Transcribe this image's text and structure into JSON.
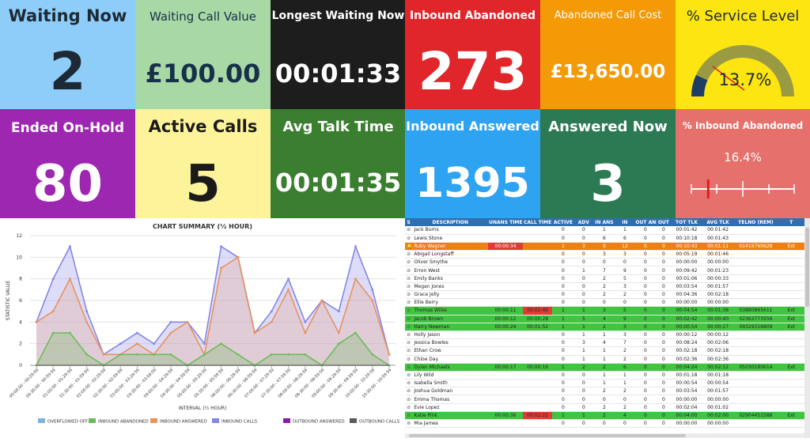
{
  "tiles": [
    {
      "title": "Waiting Now",
      "value": "2"
    },
    {
      "title": "Waiting Call Value",
      "value": "£100.00"
    },
    {
      "title": "Longest Waiting Now",
      "value": "00:01:33"
    },
    {
      "title": "Inbound Abandoned",
      "value": "273"
    },
    {
      "title": "Abandoned Call Cost",
      "value": "£13,650.00"
    },
    {
      "title": "% Service Level",
      "value": "13.7%"
    },
    {
      "title": "Ended On-Hold",
      "value": "80"
    },
    {
      "title": "Active Calls",
      "value": "5"
    },
    {
      "title": "Avg Talk Time",
      "value": "00:01:35"
    },
    {
      "title": "Inbound Answered",
      "value": "1395"
    },
    {
      "title": "Answered Now",
      "value": "3"
    },
    {
      "title": "% Inbound Abandoned",
      "value": "16.4%"
    }
  ],
  "colors": {
    "waiting_now": "#8ecdf7",
    "waiting_value": "#a8d8a4",
    "longest": "#1d1d1d",
    "abandoned": "#e1262b",
    "abandon_cost": "#f59a07",
    "service": "#fce511",
    "on_hold": "#9d27b0",
    "active": "#fdf39a",
    "avg_talk": "#3a7e2f",
    "answered": "#2ea3f2",
    "answered_now": "#2c7a54",
    "pct_abandoned": "#e6706c",
    "row_green": "#3ec63e",
    "row_orange": "#f07f12",
    "cell_red": "#e53935"
  },
  "gauge": {
    "value_pct": 13.7
  },
  "slider": {
    "value_pct": 16.4
  },
  "chart_data": {
    "type": "line",
    "title": "CHART SUMMARY (½ HOUR)",
    "xlabel": "INTERVAL (½ HOUR)",
    "ylabel": "STATISTIC VALUE",
    "ylim": [
      0,
      12
    ],
    "yticks": [
      0,
      2,
      4,
      6,
      8,
      10,
      12
    ],
    "x": [
      "00:00:00 - 00:29:59",
      "00:30:00 - 00:59:59",
      "01:00:00 - 01:29:59",
      "01:30:00 - 01:59:59",
      "02:00:00 - 02:29:59",
      "02:30:00 - 02:59:59",
      "03:00:00 - 03:29:59",
      "03:30:00 - 03:59:59",
      "04:00:00 - 04:29:59",
      "04:30:00 - 04:59:59",
      "05:00:00 - 05:29:59",
      "05:30:00 - 05:59:59",
      "06:00:00 - 06:29:59",
      "06:30:00 - 06:59:59",
      "07:00:00 - 07:29:59",
      "07:30:00 - 07:59:59",
      "08:00:00 - 08:29:59",
      "08:30:00 - 08:59:59",
      "09:00:00 - 09:29:59",
      "09:30:00 - 09:59:59",
      "10:00:00 - 10:29:59",
      "10:30:00 - 10:59:59"
    ],
    "series": [
      {
        "name": "OVERFLOWED OFF",
        "color": "#7fb2e0",
        "values": [
          0,
          0,
          0,
          0,
          0,
          0,
          0,
          0,
          0,
          0,
          0,
          0,
          0,
          0,
          0,
          0,
          0,
          0,
          0,
          0,
          0,
          0
        ]
      },
      {
        "name": "INBOUND ABANDONED",
        "color": "#6cbc5a",
        "values": [
          0,
          3,
          3,
          1,
          0,
          1,
          1,
          1,
          1,
          0,
          1,
          2,
          1,
          0,
          1,
          1,
          1,
          0,
          2,
          3,
          1,
          0
        ]
      },
      {
        "name": "INBOUND ANSWERED",
        "color": "#e8925e",
        "values": [
          4,
          5,
          8,
          4,
          1,
          1,
          2,
          1,
          3,
          4,
          1,
          9,
          10,
          3,
          4,
          7,
          3,
          6,
          3,
          8,
          6,
          1
        ]
      },
      {
        "name": "INBOUND CALLS",
        "color": "#8785e6",
        "values": [
          4,
          8,
          11,
          5,
          1,
          2,
          3,
          2,
          4,
          4,
          2,
          11,
          10,
          3,
          5,
          8,
          4,
          6,
          5,
          11,
          7,
          1
        ]
      },
      {
        "name": "OUTBOUND ANSWERED",
        "color": "#8a1ea0",
        "values": [
          0,
          0,
          0,
          0,
          0,
          0,
          0,
          0,
          0,
          0,
          0,
          0,
          0,
          0,
          0,
          0,
          0,
          0,
          0,
          0,
          0,
          0
        ]
      },
      {
        "name": "OUTBOUND CALLS",
        "color": "#5b5b5b",
        "values": [
          0,
          0,
          0,
          0,
          0,
          0,
          0,
          0,
          0,
          0,
          0,
          0,
          0,
          0,
          0,
          0,
          0,
          0,
          0,
          0,
          0,
          0
        ]
      }
    ],
    "legend_position": "bottom",
    "grid": true
  },
  "table": {
    "headers": [
      "S",
      "DESCRIPTION",
      "UNANS TIME",
      "CALL TIME",
      "ACTIVE",
      "ADV",
      "IN ANS",
      "IN",
      "OUT ANS",
      "OUT",
      "TOT TLK",
      "AVG TLK",
      "TELNO (REM)",
      "T"
    ],
    "rows": [
      {
        "type": "normal",
        "icon": "clip",
        "cells": [
          "Jack Burns",
          "",
          "",
          "0",
          "0",
          "1",
          "1",
          "0",
          "0",
          "00:01:42",
          "00:01:42",
          "",
          ""
        ]
      },
      {
        "type": "normal",
        "icon": "clip",
        "cells": [
          "Lewis Stone",
          "",
          "",
          "0",
          "0",
          "6",
          "6",
          "0",
          "0",
          "00:10:18",
          "00:01:43",
          "",
          ""
        ]
      },
      {
        "type": "orange",
        "icon": "bell",
        "cells": [
          "Ruby Wagner",
          "00:00:34",
          "",
          "1",
          "3",
          "9",
          "12",
          "0",
          "0",
          "00:10:43",
          "00:01:11",
          "01419760628",
          "Ext"
        ],
        "red": [
          1
        ]
      },
      {
        "type": "normal",
        "icon": "clip",
        "cells": [
          "Abigail Longstaff",
          "",
          "",
          "0",
          "0",
          "3",
          "3",
          "0",
          "0",
          "00:05:19",
          "00:01:46",
          "",
          ""
        ]
      },
      {
        "type": "normal",
        "icon": "clip",
        "cells": [
          "Oliver Smythe",
          "",
          "",
          "0",
          "0",
          "0",
          "0",
          "0",
          "0",
          "00:00:00",
          "00:00:00",
          "",
          ""
        ]
      },
      {
        "type": "normal",
        "icon": "clip",
        "cells": [
          "Erron West",
          "",
          "",
          "0",
          "1",
          "7",
          "9",
          "0",
          "0",
          "00:09:42",
          "00:01:23",
          "",
          ""
        ]
      },
      {
        "type": "normal",
        "icon": "clip",
        "cells": [
          "Emily Banks",
          "",
          "",
          "0",
          "0",
          "2",
          "5",
          "0",
          "0",
          "00:01:06",
          "00:00:33",
          "",
          ""
        ]
      },
      {
        "type": "normal",
        "icon": "clip",
        "cells": [
          "Megan Jones",
          "",
          "",
          "0",
          "0",
          "2",
          "3",
          "0",
          "0",
          "00:03:54",
          "00:01:57",
          "",
          ""
        ]
      },
      {
        "type": "normal",
        "icon": "clip",
        "cells": [
          "Grace Jelly",
          "",
          "",
          "0",
          "0",
          "2",
          "2",
          "0",
          "0",
          "00:04:36",
          "00:02:18",
          "",
          ""
        ]
      },
      {
        "type": "normal",
        "icon": "clip",
        "cells": [
          "Ellie Berry",
          "",
          "",
          "0",
          "0",
          "0",
          "0",
          "0",
          "0",
          "00:00:00",
          "00:00:00",
          "",
          ""
        ]
      },
      {
        "type": "green",
        "icon": "clip",
        "cells": [
          "Thomas Wiles",
          "00:00:11",
          "00:02:40",
          "1",
          "1",
          "3",
          "5",
          "0",
          "0",
          "00:04:54",
          "00:01:38",
          "03880865611",
          "Ext"
        ],
        "red": [
          2
        ]
      },
      {
        "type": "green",
        "icon": "clip",
        "cells": [
          "Jacob Brown",
          "00:00:12",
          "00:00:28",
          "1",
          "5",
          "4",
          "9",
          "0",
          "0",
          "00:02:42",
          "00:00:40",
          "02363773556",
          "Ext"
        ]
      },
      {
        "type": "green",
        "icon": "clip",
        "cells": [
          "Harry Newman",
          "00:00:24",
          "00:01:52",
          "1",
          "1",
          "2",
          "3",
          "0",
          "0",
          "00:00:54",
          "00:00:27",
          "09329316809",
          "Ext"
        ]
      },
      {
        "type": "normal",
        "icon": "clip",
        "cells": [
          "Holly Jason",
          "",
          "",
          "0",
          "1",
          "1",
          "3",
          "0",
          "0",
          "00:00:12",
          "00:00:12",
          "",
          ""
        ]
      },
      {
        "type": "normal",
        "icon": "clip",
        "cells": [
          "Jessica Bowles",
          "",
          "",
          "0",
          "3",
          "4",
          "7",
          "0",
          "0",
          "00:08:24",
          "00:02:06",
          "",
          ""
        ]
      },
      {
        "type": "normal",
        "icon": "clip",
        "cells": [
          "Ethan Crow",
          "",
          "",
          "0",
          "1",
          "1",
          "2",
          "0",
          "0",
          "00:02:18",
          "00:02:18",
          "",
          ""
        ]
      },
      {
        "type": "normal",
        "icon": "clip",
        "cells": [
          "Chloe Day",
          "",
          "",
          "0",
          "1",
          "1",
          "2",
          "0",
          "0",
          "00:02:36",
          "00:02:36",
          "",
          ""
        ]
      },
      {
        "type": "green",
        "icon": "clip",
        "cells": [
          "Dylan Michaels",
          "00:00:17",
          "00:00:16",
          "1",
          "2",
          "2",
          "6",
          "0",
          "0",
          "00:04:24",
          "00:02:12",
          "05030180614",
          "Ext"
        ]
      },
      {
        "type": "normal",
        "icon": "clip",
        "cells": [
          "Lily Wild",
          "",
          "",
          "0",
          "0",
          "1",
          "1",
          "0",
          "0",
          "00:01:18",
          "00:01:18",
          "",
          ""
        ]
      },
      {
        "type": "normal",
        "icon": "clip",
        "cells": [
          "Isabella Smith",
          "",
          "",
          "0",
          "0",
          "1",
          "1",
          "0",
          "0",
          "00:00:54",
          "00:00:54",
          "",
          ""
        ]
      },
      {
        "type": "normal",
        "icon": "clip",
        "cells": [
          "Joshua Goldman",
          "",
          "",
          "0",
          "0",
          "2",
          "2",
          "0",
          "0",
          "00:03:54",
          "00:01:57",
          "",
          ""
        ]
      },
      {
        "type": "normal",
        "icon": "clip",
        "cells": [
          "Emma Thomas",
          "",
          "",
          "0",
          "0",
          "0",
          "0",
          "0",
          "0",
          "00:00:00",
          "00:00:00",
          "",
          ""
        ]
      },
      {
        "type": "normal",
        "icon": "clip",
        "cells": [
          "Evie Lopez",
          "",
          "",
          "0",
          "0",
          "2",
          "2",
          "0",
          "0",
          "00:02:04",
          "00:01:02",
          "",
          ""
        ]
      },
      {
        "type": "green",
        "icon": "clip",
        "cells": [
          "Katie Pink",
          "00:00:36",
          "00:02:22",
          "1",
          "1",
          "2",
          "4",
          "0",
          "0",
          "00:04:00",
          "00:02:00",
          "02904451588",
          "Ext"
        ],
        "red": [
          2
        ]
      },
      {
        "type": "normal",
        "icon": "clip",
        "cells": [
          "Mia James",
          "",
          "",
          "0",
          "0",
          "0",
          "0",
          "0",
          "0",
          "00:00:00",
          "00:00:00",
          "",
          ""
        ]
      }
    ]
  }
}
